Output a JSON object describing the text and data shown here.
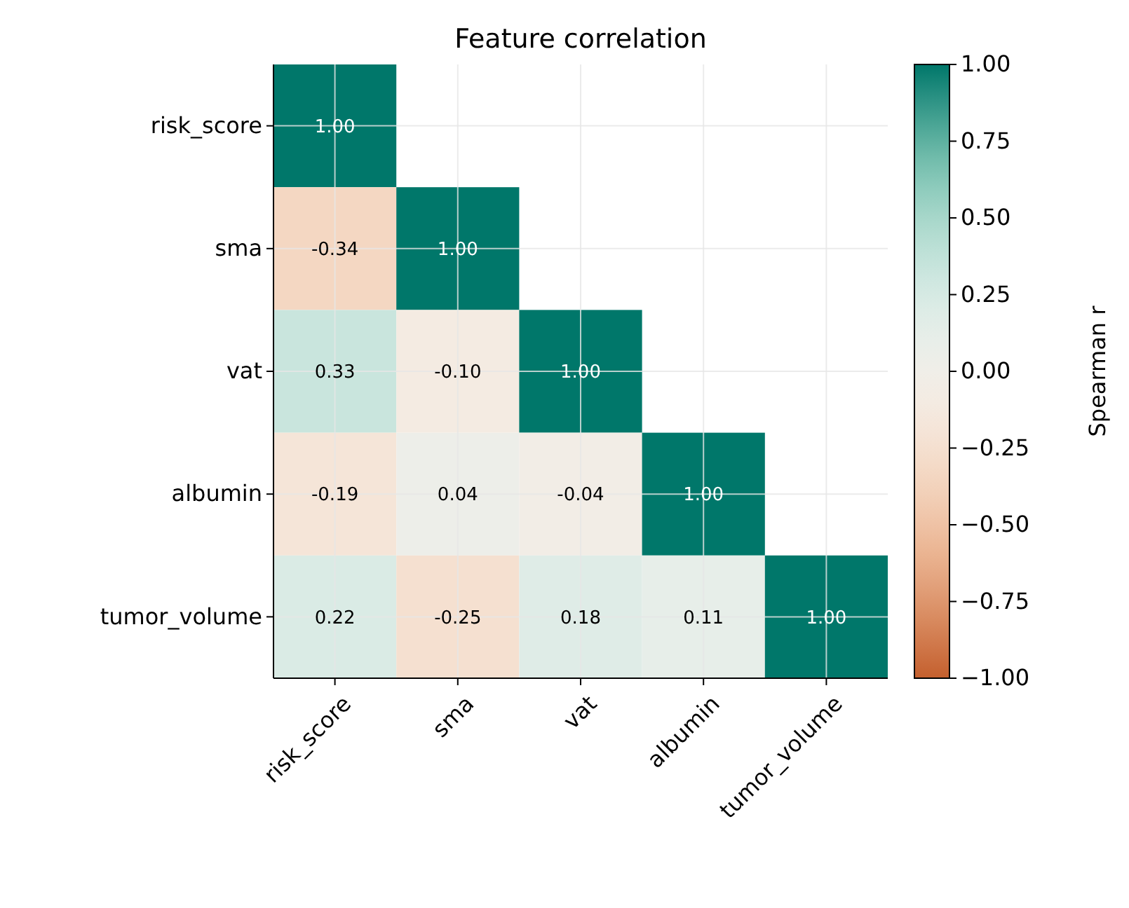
{
  "chart_data": {
    "type": "heatmap",
    "title": "Feature correlation",
    "clabel": "Spearman r",
    "categories": [
      "risk_score",
      "sma",
      "vat",
      "albumin",
      "tumor_volume"
    ],
    "y_categories": [
      "risk_score",
      "sma",
      "vat",
      "albumin",
      "tumor_volume"
    ],
    "cells": [
      [
        1.0,
        null,
        null,
        null,
        null
      ],
      [
        -0.34,
        1.0,
        null,
        null,
        null
      ],
      [
        0.33,
        -0.1,
        1.0,
        null,
        null
      ],
      [
        -0.19,
        0.04,
        -0.04,
        1.0,
        null
      ],
      [
        0.22,
        -0.25,
        0.18,
        0.11,
        1.0
      ]
    ],
    "cell_labels": [
      [
        "1.00",
        null,
        null,
        null,
        null
      ],
      [
        "-0.34",
        "1.00",
        null,
        null,
        null
      ],
      [
        "0.33",
        "-0.10",
        "1.00",
        null,
        null
      ],
      [
        "-0.19",
        "0.04",
        "-0.04",
        "1.00",
        null
      ],
      [
        "0.22",
        "-0.25",
        "0.18",
        "0.11",
        "1.00"
      ]
    ],
    "clim": [
      -1,
      1
    ],
    "cticks": [
      {
        "value": -1,
        "label": "−1.00"
      },
      {
        "value": -0.75,
        "label": "−0.75"
      },
      {
        "value": -0.5,
        "label": "−0.50"
      },
      {
        "value": -0.25,
        "label": "−0.25"
      },
      {
        "value": 0,
        "label": "0.00"
      },
      {
        "value": 0.25,
        "label": "0.25"
      },
      {
        "value": 0.5,
        "label": "0.50"
      },
      {
        "value": 0.75,
        "label": "0.75"
      },
      {
        "value": 1,
        "label": "1.00"
      }
    ],
    "grid": true
  }
}
